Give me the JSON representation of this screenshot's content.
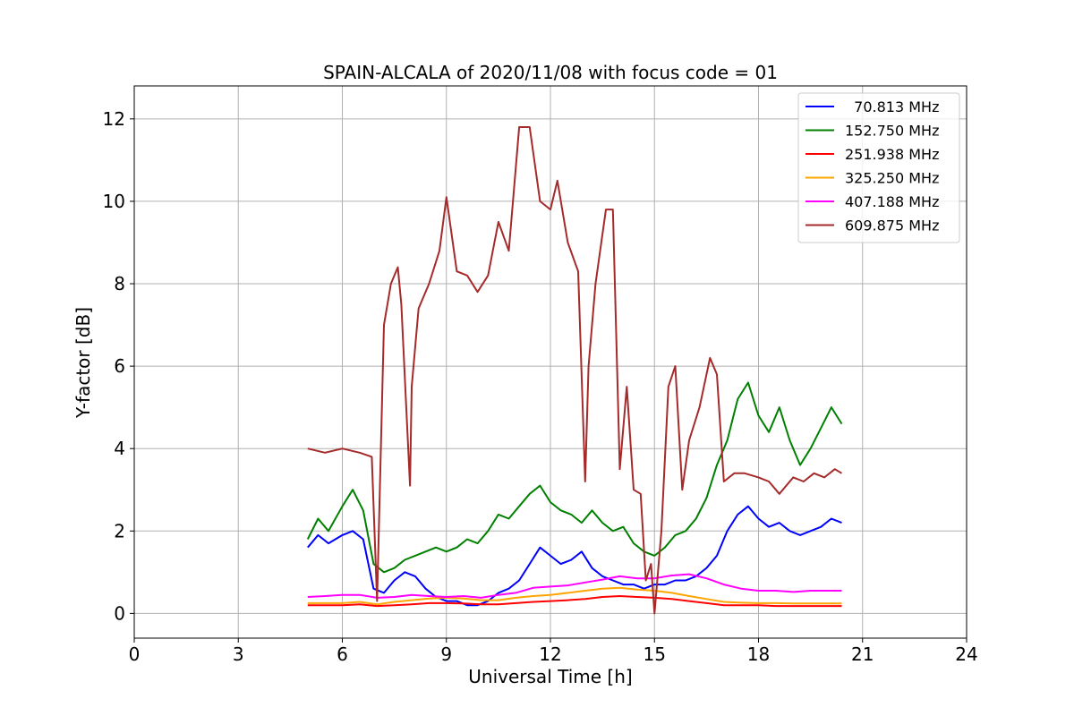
{
  "chart_data": {
    "type": "line",
    "title": "SPAIN-ALCALA of 2020/11/08 with focus code = 01",
    "xlabel": "Universal Time [h]",
    "ylabel": "Y-factor [dB]",
    "xlim": [
      0,
      24
    ],
    "ylim": [
      -0.6,
      12.8
    ],
    "xticks": [
      0,
      3,
      6,
      9,
      12,
      15,
      18,
      21,
      24
    ],
    "yticks": [
      0,
      2,
      4,
      6,
      8,
      10,
      12
    ],
    "x_tick_labels": [
      "0",
      "3",
      "6",
      "9",
      "12",
      "15",
      "18",
      "21",
      "24"
    ],
    "y_tick_labels": [
      "0",
      "2",
      "4",
      "6",
      "8",
      "10",
      "12"
    ],
    "grid": true,
    "legend_position": "top-right",
    "series": [
      {
        "name": "  70.813 MHz",
        "color": "#0000ff",
        "x": [
          5.0,
          5.3,
          5.6,
          6.0,
          6.3,
          6.6,
          6.9,
          7.2,
          7.5,
          7.8,
          8.1,
          8.4,
          8.7,
          9.0,
          9.3,
          9.6,
          9.9,
          10.2,
          10.5,
          10.8,
          11.1,
          11.4,
          11.7,
          12.0,
          12.3,
          12.6,
          12.9,
          13.2,
          13.5,
          13.8,
          14.1,
          14.4,
          14.7,
          15.0,
          15.3,
          15.6,
          15.9,
          16.2,
          16.5,
          16.8,
          17.1,
          17.4,
          17.7,
          18.0,
          18.3,
          18.6,
          18.9,
          19.2,
          19.5,
          19.8,
          20.1,
          20.4
        ],
        "y": [
          1.6,
          1.9,
          1.7,
          1.9,
          2.0,
          1.8,
          0.6,
          0.5,
          0.8,
          1.0,
          0.9,
          0.6,
          0.4,
          0.3,
          0.3,
          0.2,
          0.2,
          0.3,
          0.5,
          0.6,
          0.8,
          1.2,
          1.6,
          1.4,
          1.2,
          1.3,
          1.5,
          1.1,
          0.9,
          0.8,
          0.7,
          0.7,
          0.6,
          0.7,
          0.7,
          0.8,
          0.8,
          0.9,
          1.1,
          1.4,
          2.0,
          2.4,
          2.6,
          2.3,
          2.1,
          2.2,
          2.0,
          1.9,
          2.0,
          2.1,
          2.3,
          2.2
        ]
      },
      {
        "name": "152.750 MHz",
        "color": "#008000",
        "x": [
          5.0,
          5.3,
          5.6,
          6.0,
          6.3,
          6.6,
          6.9,
          7.2,
          7.5,
          7.8,
          8.1,
          8.4,
          8.7,
          9.0,
          9.3,
          9.6,
          9.9,
          10.2,
          10.5,
          10.8,
          11.1,
          11.4,
          11.7,
          12.0,
          12.3,
          12.6,
          12.9,
          13.2,
          13.5,
          13.8,
          14.1,
          14.4,
          14.7,
          15.0,
          15.3,
          15.6,
          15.9,
          16.2,
          16.5,
          16.8,
          17.1,
          17.4,
          17.7,
          18.0,
          18.3,
          18.6,
          18.9,
          19.2,
          19.5,
          19.8,
          20.1,
          20.4
        ],
        "y": [
          1.8,
          2.3,
          2.0,
          2.6,
          3.0,
          2.5,
          1.2,
          1.0,
          1.1,
          1.3,
          1.4,
          1.5,
          1.6,
          1.5,
          1.6,
          1.8,
          1.7,
          2.0,
          2.4,
          2.3,
          2.6,
          2.9,
          3.1,
          2.7,
          2.5,
          2.4,
          2.2,
          2.5,
          2.2,
          2.0,
          2.1,
          1.7,
          1.5,
          1.4,
          1.6,
          1.9,
          2.0,
          2.3,
          2.8,
          3.6,
          4.2,
          5.2,
          5.6,
          4.8,
          4.4,
          5.0,
          4.2,
          3.6,
          4.0,
          4.5,
          5.0,
          4.6
        ]
      },
      {
        "name": "251.938 MHz",
        "color": "#ff0000",
        "x": [
          5.0,
          5.5,
          6.0,
          6.5,
          7.0,
          7.5,
          8.0,
          8.5,
          9.0,
          9.5,
          10.0,
          10.5,
          11.0,
          11.5,
          12.0,
          12.5,
          13.0,
          13.5,
          14.0,
          14.5,
          15.0,
          15.5,
          16.0,
          16.5,
          17.0,
          17.5,
          18.0,
          18.5,
          19.0,
          19.5,
          20.0,
          20.4
        ],
        "y": [
          0.2,
          0.2,
          0.2,
          0.22,
          0.18,
          0.2,
          0.22,
          0.25,
          0.25,
          0.24,
          0.22,
          0.22,
          0.25,
          0.28,
          0.3,
          0.32,
          0.35,
          0.4,
          0.42,
          0.4,
          0.38,
          0.35,
          0.3,
          0.25,
          0.2,
          0.2,
          0.2,
          0.18,
          0.18,
          0.18,
          0.18,
          0.18
        ]
      },
      {
        "name": "325.250 MHz",
        "color": "#ffa500",
        "x": [
          5.0,
          5.5,
          6.0,
          6.5,
          7.0,
          7.5,
          8.0,
          8.5,
          9.0,
          9.5,
          10.0,
          10.5,
          11.0,
          11.5,
          12.0,
          12.5,
          13.0,
          13.5,
          14.0,
          14.5,
          15.0,
          15.5,
          16.0,
          16.5,
          17.0,
          17.5,
          18.0,
          18.5,
          19.0,
          19.5,
          20.0,
          20.4
        ],
        "y": [
          0.25,
          0.25,
          0.25,
          0.28,
          0.22,
          0.28,
          0.32,
          0.36,
          0.38,
          0.36,
          0.32,
          0.32,
          0.38,
          0.42,
          0.45,
          0.5,
          0.55,
          0.6,
          0.62,
          0.58,
          0.55,
          0.5,
          0.42,
          0.35,
          0.28,
          0.26,
          0.25,
          0.25,
          0.24,
          0.24,
          0.24,
          0.24
        ]
      },
      {
        "name": "407.188 MHz",
        "color": "#ff00ff",
        "x": [
          5.0,
          5.5,
          6.0,
          6.5,
          7.0,
          7.5,
          8.0,
          8.5,
          9.0,
          9.5,
          10.0,
          10.5,
          11.0,
          11.5,
          12.0,
          12.5,
          13.0,
          13.5,
          14.0,
          14.5,
          15.0,
          15.5,
          16.0,
          16.5,
          17.0,
          17.5,
          18.0,
          18.5,
          19.0,
          19.5,
          20.0,
          20.4
        ],
        "y": [
          0.4,
          0.42,
          0.45,
          0.45,
          0.38,
          0.4,
          0.45,
          0.42,
          0.4,
          0.42,
          0.38,
          0.45,
          0.5,
          0.62,
          0.65,
          0.68,
          0.75,
          0.82,
          0.9,
          0.85,
          0.85,
          0.92,
          0.95,
          0.85,
          0.7,
          0.6,
          0.55,
          0.55,
          0.52,
          0.55,
          0.55,
          0.55
        ]
      },
      {
        "name": "609.875 MHz",
        "color": "#a52a2a",
        "x": [
          5.0,
          5.5,
          6.0,
          6.5,
          6.85,
          7.0,
          7.2,
          7.4,
          7.6,
          7.7,
          7.95,
          8.0,
          8.2,
          8.5,
          8.8,
          9.0,
          9.3,
          9.6,
          9.9,
          10.2,
          10.5,
          10.8,
          11.1,
          11.4,
          11.7,
          12.0,
          12.2,
          12.5,
          12.8,
          13.0,
          13.1,
          13.3,
          13.6,
          13.8,
          14.0,
          14.2,
          14.4,
          14.6,
          14.75,
          14.9,
          15.0,
          15.2,
          15.4,
          15.6,
          15.8,
          16.0,
          16.3,
          16.6,
          16.8,
          17.0,
          17.3,
          17.6,
          18.0,
          18.3,
          18.6,
          19.0,
          19.3,
          19.6,
          19.9,
          20.2,
          20.4
        ],
        "y": [
          4.0,
          3.9,
          4.0,
          3.9,
          3.8,
          0.3,
          7.0,
          8.0,
          8.4,
          7.5,
          3.1,
          5.5,
          7.4,
          8.0,
          8.8,
          10.1,
          8.3,
          8.2,
          7.8,
          8.2,
          9.5,
          8.8,
          11.8,
          11.8,
          10.0,
          9.8,
          10.5,
          9.0,
          8.3,
          3.2,
          6.0,
          8.0,
          9.8,
          9.8,
          3.5,
          5.5,
          3.0,
          2.9,
          0.8,
          1.2,
          0.0,
          2.0,
          5.5,
          6.0,
          3.0,
          4.2,
          5.0,
          6.2,
          5.8,
          3.2,
          3.4,
          3.4,
          3.3,
          3.2,
          2.9,
          3.3,
          3.2,
          3.4,
          3.3,
          3.5,
          3.4
        ]
      }
    ]
  }
}
